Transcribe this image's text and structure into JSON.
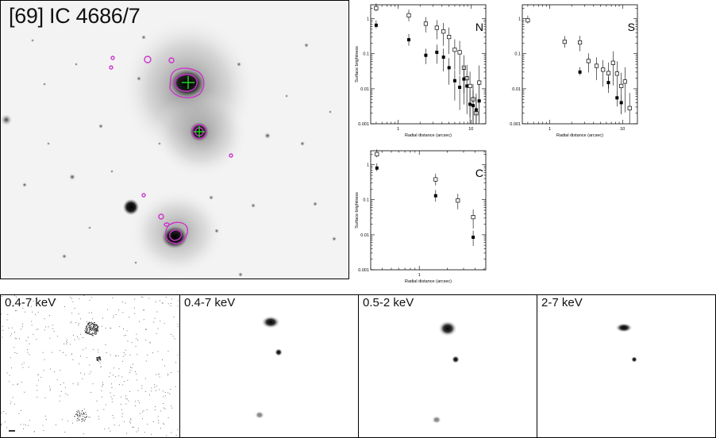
{
  "optical_image": {
    "title": "[69] IC 4686/7"
  },
  "xray_panels": [
    {
      "band": "0.4-7 keV"
    },
    {
      "band": "0.4-7 keV"
    },
    {
      "band": "0.5-2 keV"
    },
    {
      "band": "2-7 keV"
    }
  ],
  "chart_data": [
    {
      "type": "scatter",
      "panel_label": "N",
      "xlabel": "Radial distance (arcsec)",
      "ylabel": "Surface brightness",
      "xscale": "log",
      "yscale": "log",
      "xlim": [
        0.42,
        16
      ],
      "ylim": [
        0.001,
        2.5
      ],
      "x_tick_labels": [
        "1",
        "10"
      ],
      "y_tick_labels": [
        "0.001",
        "0.01",
        "0.1",
        "1"
      ],
      "series": [
        {
          "marker": "open-square",
          "x": [
            0.5,
            1.4,
            2.4,
            3.4,
            4.2,
            5.0,
            6.0,
            7.0,
            8.0,
            8.8,
            9.7,
            10.7,
            11.8,
            13.0
          ],
          "y": [
            2.0,
            1.25,
            0.72,
            0.55,
            0.43,
            0.3,
            0.13,
            0.11,
            0.04,
            0.02,
            0.012,
            0.005,
            0.002,
            0.015
          ]
        },
        {
          "marker": "filled-square",
          "x": [
            0.5,
            1.4,
            2.4,
            3.4,
            4.2,
            5.0,
            6.0,
            7.0,
            8.0,
            8.8,
            9.7,
            10.7,
            11.8,
            13.0
          ],
          "y": [
            0.65,
            0.25,
            0.09,
            0.11,
            0.08,
            0.04,
            0.017,
            0.011,
            0.019,
            0.012,
            0.0036,
            0.0033,
            0.0025,
            0.0045
          ]
        }
      ]
    },
    {
      "type": "scatter",
      "panel_label": "S",
      "xlabel": "Radial distance (arcsec)",
      "ylabel": "",
      "xscale": "log",
      "yscale": "log",
      "xlim": [
        0.42,
        16
      ],
      "ylim": [
        0.001,
        2.5
      ],
      "x_tick_labels": [
        "1",
        "10"
      ],
      "y_tick_labels": [
        "0.001",
        "0.01",
        "0.1",
        "1"
      ],
      "series": [
        {
          "marker": "open-square",
          "x": [
            0.5,
            1.6,
            2.6,
            3.4,
            4.4,
            5.4,
            6.4,
            7.4,
            8.4,
            9.6,
            10.8,
            12.5
          ],
          "y": [
            0.9,
            0.22,
            0.21,
            0.062,
            0.045,
            0.035,
            0.028,
            0.055,
            0.027,
            0.012,
            0.016,
            0.0028
          ]
        },
        {
          "marker": "filled-square",
          "x": [
            2.6,
            6.4,
            8.4,
            9.6
          ],
          "y": [
            0.03,
            0.015,
            0.0055,
            0.004
          ]
        }
      ]
    },
    {
      "type": "scatter",
      "panel_label": "C",
      "xlabel": "Radial distance (arcsec)",
      "ylabel": "Surface brightness",
      "xscale": "log",
      "yscale": "log",
      "xlim": [
        0.3,
        5.2
      ],
      "ylim": [
        0.001,
        2.5
      ],
      "x_tick_labels": [
        "1"
      ],
      "y_tick_labels": [
        "0.001",
        "0.01",
        "0.1",
        "1"
      ],
      "series": [
        {
          "marker": "open-square",
          "x": [
            0.35,
            1.5,
            2.6,
            3.8
          ],
          "y": [
            2.0,
            0.38,
            0.095,
            0.032
          ]
        },
        {
          "marker": "filled-square",
          "x": [
            0.35,
            1.5,
            3.8
          ],
          "y": [
            0.8,
            0.13,
            0.0085
          ]
        }
      ]
    }
  ]
}
